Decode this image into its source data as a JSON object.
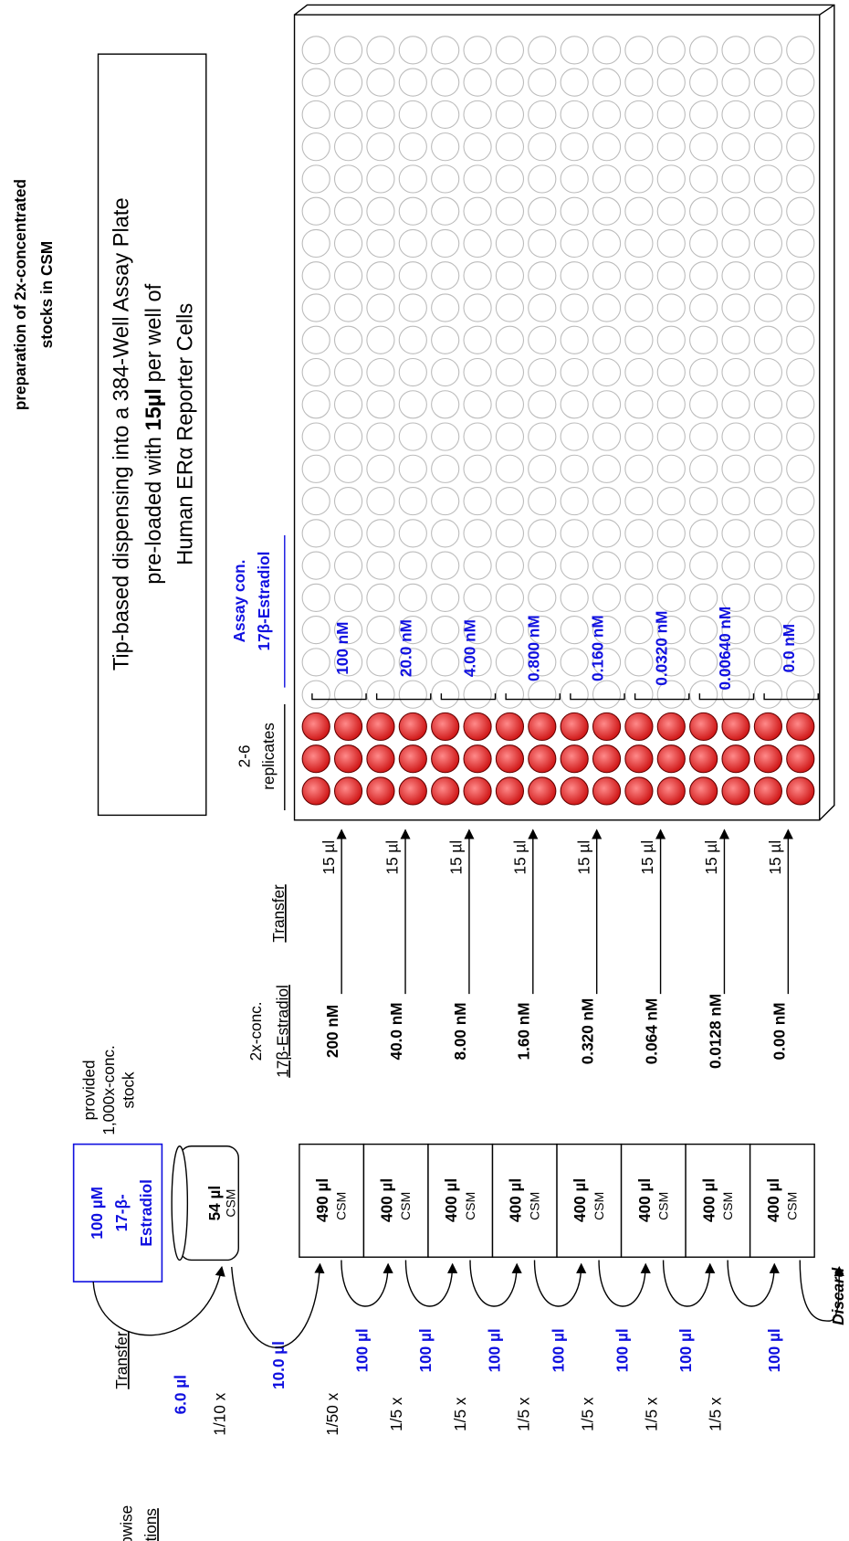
{
  "header": {
    "title_lines": [
      "preparation of 2x-concentrated",
      "stocks in CSM"
    ]
  },
  "stock": {
    "lines": [
      "100 µM",
      "17-β-",
      "Estradiol"
    ],
    "note": [
      "provided",
      "1,000x-conc.",
      "stock"
    ]
  },
  "beaker": {
    "volume": "54 µl",
    "medium": "CSM"
  },
  "labels": {
    "stepwise": [
      "Stepwise",
      "dilutions"
    ],
    "transfer1": "Transfer",
    "conc": [
      "2x-conc.",
      "17β-Estradiol"
    ],
    "transfer2": "Transfer",
    "replicates": [
      "2-6",
      "replicates"
    ],
    "assay": [
      "Assay con.",
      "17β-Estradiol"
    ],
    "discard": "Discard"
  },
  "dilutions": [
    "1/10 x",
    "1/50 x",
    "1/5 x",
    "1/5 x",
    "1/5 x",
    "1/5 x",
    "1/5 x",
    "1/5 x"
  ],
  "transfer_volumes": [
    "6.0 µl",
    "10.0 µl",
    "100 µl",
    "100 µl",
    "100 µl",
    "100 µl",
    "100 µl",
    "100 µl",
    "100 µl"
  ],
  "tubes": [
    {
      "volume": "490 µl",
      "medium": "CSM"
    },
    {
      "volume": "400 µl",
      "medium": "CSM"
    },
    {
      "volume": "400 µl",
      "medium": "CSM"
    },
    {
      "volume": "400 µl",
      "medium": "CSM"
    },
    {
      "volume": "400 µl",
      "medium": "CSM"
    },
    {
      "volume": "400 µl",
      "medium": "CSM"
    },
    {
      "volume": "400 µl",
      "medium": "CSM"
    },
    {
      "volume": "400 µl",
      "medium": "CSM"
    }
  ],
  "stocks_2x": [
    "200 nM",
    "40.0 nM",
    "8.00 nM",
    "1.60 nM",
    "0.320 nM",
    "0.064 nM",
    "0.0128 nM",
    "0.00 nM"
  ],
  "plate_transfer": [
    "15 µl",
    "15 µl",
    "15 µl",
    "15 µl",
    "15 µl",
    "15 µl",
    "15 µl",
    "15 µl"
  ],
  "assay_conc": [
    "100 nM",
    "20.0 nM",
    "4.00 nM",
    "0.800 nM",
    "0.160 nM",
    "0.0320 nM",
    "0.00640 nM",
    "0.0 nM"
  ],
  "plate_title": {
    "line1": "Tip-based dispensing into a 384-Well Assay Plate",
    "line2_pre": "pre-loaded with ",
    "line2_bold": "15µl",
    "line2_post": " per well of",
    "line3": "Human ERα Reporter Cells"
  }
}
